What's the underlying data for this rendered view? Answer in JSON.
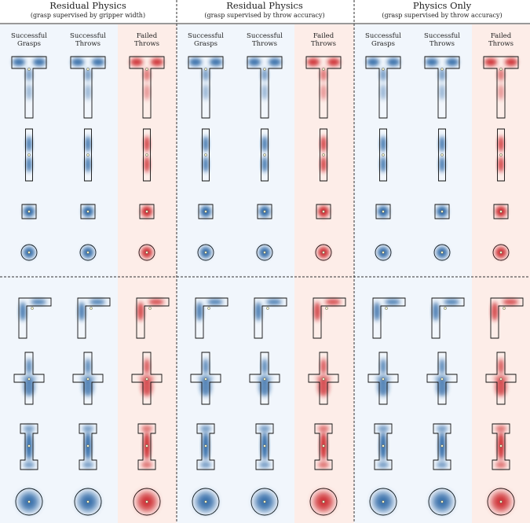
{
  "panels": [
    {
      "title": "Residual Physics",
      "subtitle": "(grasp supervised by gripper width)",
      "columns": [
        {
          "line1": "Successful",
          "line2": "Grasps",
          "kind": "blue"
        },
        {
          "line1": "Successful",
          "line2": "Throws",
          "kind": "blue"
        },
        {
          "line1": "Failed",
          "line2": "Throws",
          "kind": "red"
        }
      ]
    },
    {
      "title": "Residual Physics",
      "subtitle": "(grasp supervised by throw accuracy)",
      "columns": [
        {
          "line1": "Successful",
          "line2": "Grasps",
          "kind": "blue"
        },
        {
          "line1": "Successful",
          "line2": "Throws",
          "kind": "blue"
        },
        {
          "line1": "Failed",
          "line2": "Throws",
          "kind": "red"
        }
      ]
    },
    {
      "title": "Physics Only",
      "subtitle": "(grasp supervised by throw accuracy)",
      "columns": [
        {
          "line1": "Successful",
          "line2": "Grasps",
          "kind": "blue"
        },
        {
          "line1": "Successful",
          "line2": "Throws",
          "kind": "blue"
        },
        {
          "line1": "Failed",
          "line2": "Throws",
          "kind": "red"
        }
      ]
    }
  ],
  "objects": [
    "t-shape",
    "rod",
    "square-block",
    "ring",
    "l-shape",
    "cross",
    "i-beam",
    "large-ring"
  ],
  "colors": {
    "blue": "#1f5c9e",
    "red": "#c8151b",
    "blue_bg": "#f1f6fc",
    "red_bg": "#fdede8",
    "outline": "#111111",
    "divider": "#333333"
  }
}
